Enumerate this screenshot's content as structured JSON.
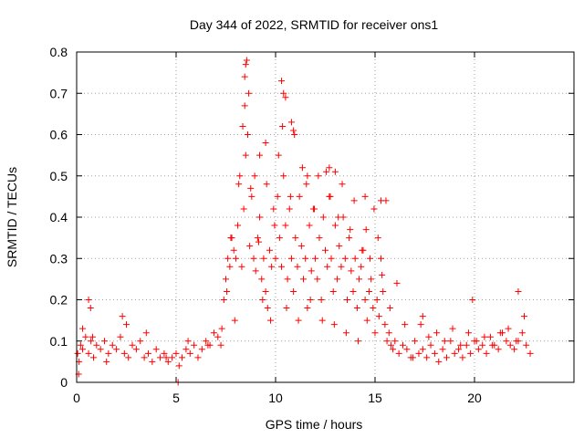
{
  "chart_data": {
    "type": "scatter",
    "title": "Day 344 of 2022, SRMTID for receiver ons1",
    "xlabel": "GPS time / hours",
    "ylabel": "SRMTID / TECUs",
    "xlim": [
      0,
      25
    ],
    "ylim": [
      0,
      0.8
    ],
    "xticks": [
      {
        "value": 0,
        "label": "0"
      },
      {
        "value": 5,
        "label": "5"
      },
      {
        "value": 10,
        "label": "10"
      },
      {
        "value": 15,
        "label": "15"
      },
      {
        "value": 20,
        "label": "20"
      }
    ],
    "yticks": [
      {
        "value": 0,
        "label": "0"
      },
      {
        "value": 0.1,
        "label": "0.1"
      },
      {
        "value": 0.2,
        "label": "0.2"
      },
      {
        "value": 0.3,
        "label": "0.3"
      },
      {
        "value": 0.4,
        "label": "0.4"
      },
      {
        "value": 0.5,
        "label": "0.5"
      },
      {
        "value": 0.6,
        "label": "0.6"
      },
      {
        "value": 0.7,
        "label": "0.7"
      },
      {
        "value": 0.8,
        "label": "0.8"
      }
    ],
    "grid": true,
    "marker": "plus",
    "color": "#ff0000",
    "series": [
      {
        "name": "SRMTID",
        "x": [
          0.05,
          0.12,
          0.2,
          0.3,
          0.45,
          0.6,
          0.72,
          0.85,
          1.0,
          1.2,
          1.4,
          1.6,
          1.8,
          2.0,
          2.2,
          2.4,
          2.6,
          2.8,
          3.0,
          3.2,
          3.4,
          3.6,
          3.8,
          4.0,
          4.2,
          4.4,
          4.6,
          4.8,
          5.0,
          5.15,
          5.3,
          5.5,
          5.7,
          5.9,
          6.1,
          6.3,
          6.5,
          6.7,
          6.9,
          7.1,
          7.25,
          7.4,
          7.5,
          7.6,
          7.7,
          7.8,
          7.9,
          8.0,
          8.1,
          8.2,
          8.3,
          8.4,
          8.5,
          8.6,
          8.7,
          8.8,
          8.9,
          9.0,
          9.1,
          9.2,
          9.3,
          9.4,
          9.5,
          9.6,
          9.7,
          9.8,
          9.9,
          10.0,
          10.1,
          10.2,
          10.3,
          10.4,
          10.5,
          10.6,
          10.7,
          10.8,
          10.9,
          11.0,
          11.1,
          11.2,
          11.3,
          11.4,
          11.5,
          11.6,
          11.7,
          11.8,
          11.9,
          12.0,
          12.1,
          12.2,
          12.3,
          12.4,
          12.5,
          12.6,
          12.7,
          12.8,
          12.9,
          13.0,
          13.1,
          13.2,
          13.3,
          13.4,
          13.5,
          13.6,
          13.7,
          13.8,
          13.9,
          14.0,
          14.1,
          14.2,
          14.3,
          14.4,
          14.5,
          14.6,
          14.7,
          14.8,
          14.9,
          15.0,
          15.1,
          15.2,
          15.3,
          15.4,
          15.5,
          15.6,
          15.7,
          15.8,
          15.9,
          16.0,
          16.2,
          16.4,
          16.6,
          16.8,
          17.0,
          17.2,
          17.4,
          17.6,
          17.8,
          18.0,
          18.2,
          18.4,
          18.6,
          18.8,
          19.0,
          19.2,
          19.4,
          19.6,
          19.8,
          20.0,
          20.2,
          20.4,
          20.6,
          20.8,
          21.0,
          21.2,
          21.4,
          21.6,
          21.8,
          22.0,
          22.2,
          22.4,
          22.6,
          22.8,
          0.3,
          0.8,
          1.5,
          2.5,
          3.5,
          4.5,
          5.6,
          6.6,
          7.3,
          7.55,
          7.75,
          7.95,
          8.15,
          8.35,
          8.45,
          8.55,
          8.65,
          8.75,
          8.95,
          9.15,
          9.35,
          9.55,
          9.75,
          9.95,
          10.15,
          10.35,
          10.55,
          10.75,
          10.95,
          11.15,
          11.35,
          11.55,
          11.75,
          11.95,
          12.15,
          12.35,
          12.55,
          12.75,
          12.95,
          13.15,
          13.35,
          13.55,
          13.75,
          13.95,
          14.15,
          14.35,
          14.55,
          14.75,
          14.95,
          15.15,
          15.35,
          15.55,
          15.75,
          16.1,
          16.5,
          16.9,
          17.3,
          17.7,
          18.1,
          18.5,
          18.9,
          19.3,
          19.7,
          20.1,
          20.5,
          20.9,
          21.3,
          21.7,
          22.1,
          22.5,
          0.1,
          5.1,
          8.45,
          8.5,
          10.3,
          10.4,
          10.5,
          10.8,
          10.9,
          9.2,
          9.5,
          11.6,
          12.7,
          13.0,
          14.5,
          15.3,
          0.6,
          0.7,
          2.3,
          17.4,
          19.9,
          22.2
        ],
        "y": [
          0.07,
          0.05,
          0.09,
          0.08,
          0.11,
          0.07,
          0.1,
          0.06,
          0.09,
          0.08,
          0.1,
          0.07,
          0.09,
          0.08,
          0.11,
          0.07,
          0.06,
          0.09,
          0.08,
          0.1,
          0.06,
          0.07,
          0.05,
          0.08,
          0.06,
          0.07,
          0.05,
          0.06,
          0.07,
          0.04,
          0.06,
          0.08,
          0.07,
          0.09,
          0.06,
          0.08,
          0.1,
          0.09,
          0.12,
          0.11,
          0.09,
          0.2,
          0.25,
          0.3,
          0.28,
          0.35,
          0.32,
          0.3,
          0.38,
          0.5,
          0.28,
          0.42,
          0.55,
          0.6,
          0.33,
          0.45,
          0.3,
          0.27,
          0.35,
          0.4,
          0.25,
          0.3,
          0.22,
          0.18,
          0.32,
          0.28,
          0.42,
          0.3,
          0.45,
          0.35,
          0.28,
          0.5,
          0.38,
          0.25,
          0.42,
          0.3,
          0.22,
          0.35,
          0.28,
          0.45,
          0.33,
          0.25,
          0.3,
          0.18,
          0.38,
          0.27,
          0.42,
          0.3,
          0.25,
          0.35,
          0.2,
          0.4,
          0.32,
          0.28,
          0.45,
          0.3,
          0.22,
          0.38,
          0.25,
          0.33,
          0.28,
          0.4,
          0.3,
          0.2,
          0.35,
          0.27,
          0.22,
          0.3,
          0.18,
          0.25,
          0.28,
          0.32,
          0.2,
          0.15,
          0.22,
          0.25,
          0.18,
          0.12,
          0.2,
          0.16,
          0.3,
          0.22,
          0.14,
          0.1,
          0.12,
          0.09,
          0.08,
          0.1,
          0.07,
          0.09,
          0.08,
          0.06,
          0.1,
          0.07,
          0.08,
          0.06,
          0.09,
          0.07,
          0.05,
          0.08,
          0.06,
          0.1,
          0.07,
          0.08,
          0.06,
          0.09,
          0.07,
          0.1,
          0.08,
          0.09,
          0.07,
          0.11,
          0.09,
          0.08,
          0.12,
          0.1,
          0.09,
          0.08,
          0.1,
          0.12,
          0.09,
          0.07,
          0.13,
          0.11,
          0.05,
          0.14,
          0.12,
          0.06,
          0.1,
          0.09,
          0.13,
          0.22,
          0.35,
          0.15,
          0.48,
          0.62,
          0.67,
          0.78,
          0.7,
          0.47,
          0.5,
          0.34,
          0.2,
          0.48,
          0.15,
          0.38,
          0.55,
          0.62,
          0.18,
          0.45,
          0.6,
          0.15,
          0.52,
          0.48,
          0.2,
          0.42,
          0.5,
          0.15,
          0.51,
          0.45,
          0.14,
          0.4,
          0.48,
          0.12,
          0.37,
          0.44,
          0.1,
          0.32,
          0.37,
          0.3,
          0.42,
          0.35,
          0.26,
          0.44,
          0.18,
          0.24,
          0.14,
          0.06,
          0.14,
          0.11,
          0.12,
          0.1,
          0.13,
          0.09,
          0.12,
          0.1,
          0.11,
          0.09,
          0.12,
          0.13,
          0.1,
          0.16,
          0.02,
          0.0,
          0.74,
          0.77,
          0.73,
          0.7,
          0.69,
          0.63,
          0.61,
          0.55,
          0.58,
          0.5,
          0.52,
          0.51,
          0.45,
          0.44,
          0.2,
          0.18,
          0.16,
          0.16,
          0.2,
          0.22
        ]
      }
    ]
  }
}
